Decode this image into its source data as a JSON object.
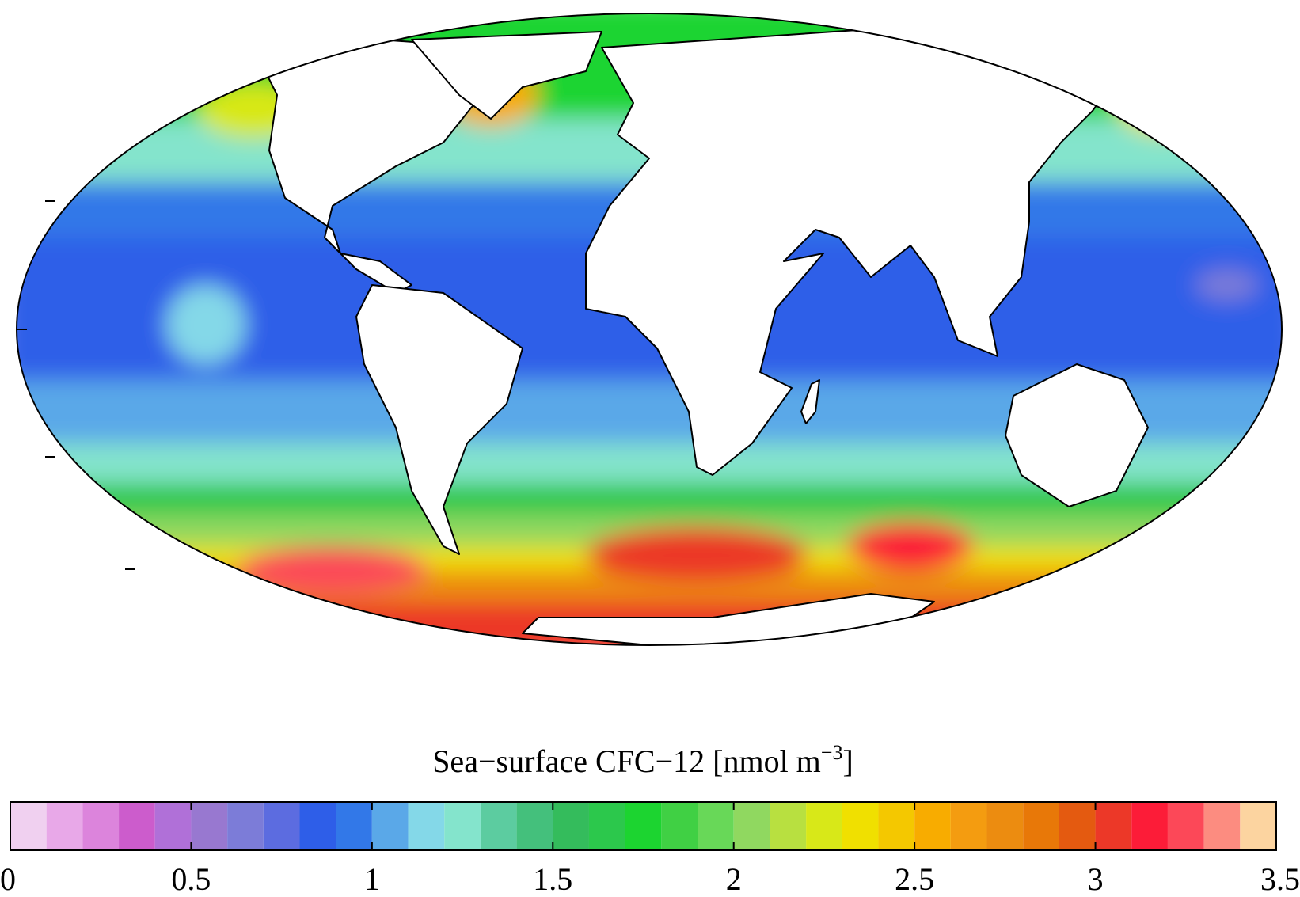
{
  "colorbar": {
    "label": {
      "text": "Sea−surface CFC−12 [nmol m",
      "superscript": "−3",
      "close": "]"
    },
    "xlim": [
      0,
      3.5
    ],
    "xticks": [
      0,
      0.5,
      1,
      1.5,
      2,
      2.5,
      3,
      3.5
    ],
    "bins": [
      0,
      0.1,
      0.2,
      0.3,
      0.4,
      0.5,
      0.6,
      0.7,
      0.8,
      0.9,
      1,
      1.1,
      1.2,
      1.3,
      1.4,
      1.5,
      1.6,
      1.7,
      1.8,
      1.9,
      2,
      2.1,
      2.2,
      2.3,
      2.4,
      2.5,
      2.6,
      2.7,
      2.8,
      2.9,
      3,
      3.1,
      3.2,
      3.3,
      3.4,
      3.5
    ],
    "colors": [
      "#f0d0f0",
      "#e8a8e8",
      "#dc84dc",
      "#cc5ccc",
      "#b070d8",
      "#9878d0",
      "#7c7cd8",
      "#5c6ce0",
      "#2e5ee8",
      "#3278e8",
      "#5aa8e8",
      "#84d8e8",
      "#84e4cc",
      "#5ccca0",
      "#44c07c",
      "#34bc5c",
      "#2cc84c",
      "#1cd430",
      "#40d044",
      "#68d858",
      "#90d860",
      "#b8e040",
      "#d8e818",
      "#f0e000",
      "#f4c800",
      "#f8ac00",
      "#f49c10",
      "#ec8c10",
      "#e87808",
      "#e45a10",
      "#ec3828",
      "#fc1c38",
      "#fc4858",
      "#fc8c80",
      "#fcd4a0"
    ]
  }
}
